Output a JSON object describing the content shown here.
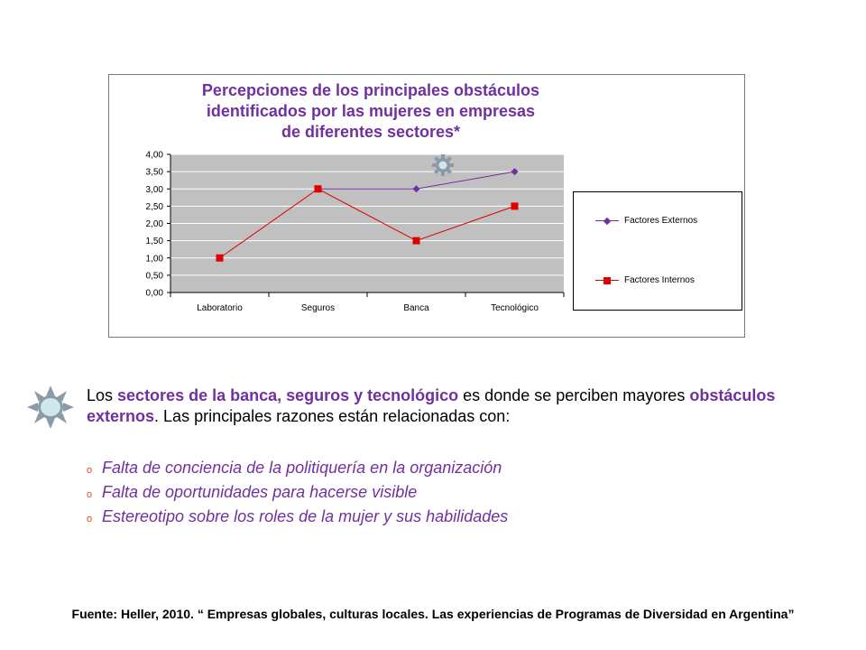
{
  "colors": {
    "accent": "#7030a0",
    "series_externos": "#7030a0",
    "series_internos": "#e00000",
    "plot_bg": "#c0c0c0",
    "bullet": "#e04a1a"
  },
  "chart_data": {
    "type": "line",
    "title": "Percepciones de los principales obstáculos\nidentificados por las mujeres en empresas\nde diferentes sectores*",
    "categories": [
      "Laboratorio",
      "Seguros",
      "Banca",
      "Tecnológico"
    ],
    "ylim": [
      0,
      4
    ],
    "yticks": [
      "0,00",
      "0,50",
      "1,00",
      "1,50",
      "2,00",
      "2,50",
      "3,00",
      "3,50",
      "4,00"
    ],
    "grid": true,
    "legend_position": "right",
    "series": [
      {
        "name": "Factores Externos",
        "marker": "diamond",
        "values": [
          null,
          3.0,
          3.0,
          3.5
        ]
      },
      {
        "name": "Factores Internos",
        "marker": "square",
        "values": [
          1.0,
          3.0,
          1.5,
          2.5
        ]
      }
    ]
  },
  "text": {
    "p1_before": "Los ",
    "p1_hl1": "sectores de la banca, seguros y tecnológico",
    "p1_mid": " es donde se perciben mayores ",
    "p1_hl2": "obstáculos externos",
    "p1_after": ". Las principales razones están relacionadas con:",
    "bullet_mark": "o",
    "bullets": [
      "Falta de conciencia de la politiquería en la organización",
      "Falta de oportunidades para hacerse visible",
      "Estereotipo sobre los roles de la mujer y sus habilidades"
    ]
  },
  "source": "Fuente: Heller, 2010. “ Empresas globales, culturas locales. Las experiencias de Programas de Diversidad en Argentina”",
  "icons": {
    "chart_decoration": "gear-icon",
    "paragraph_marker": "sun-icon"
  }
}
